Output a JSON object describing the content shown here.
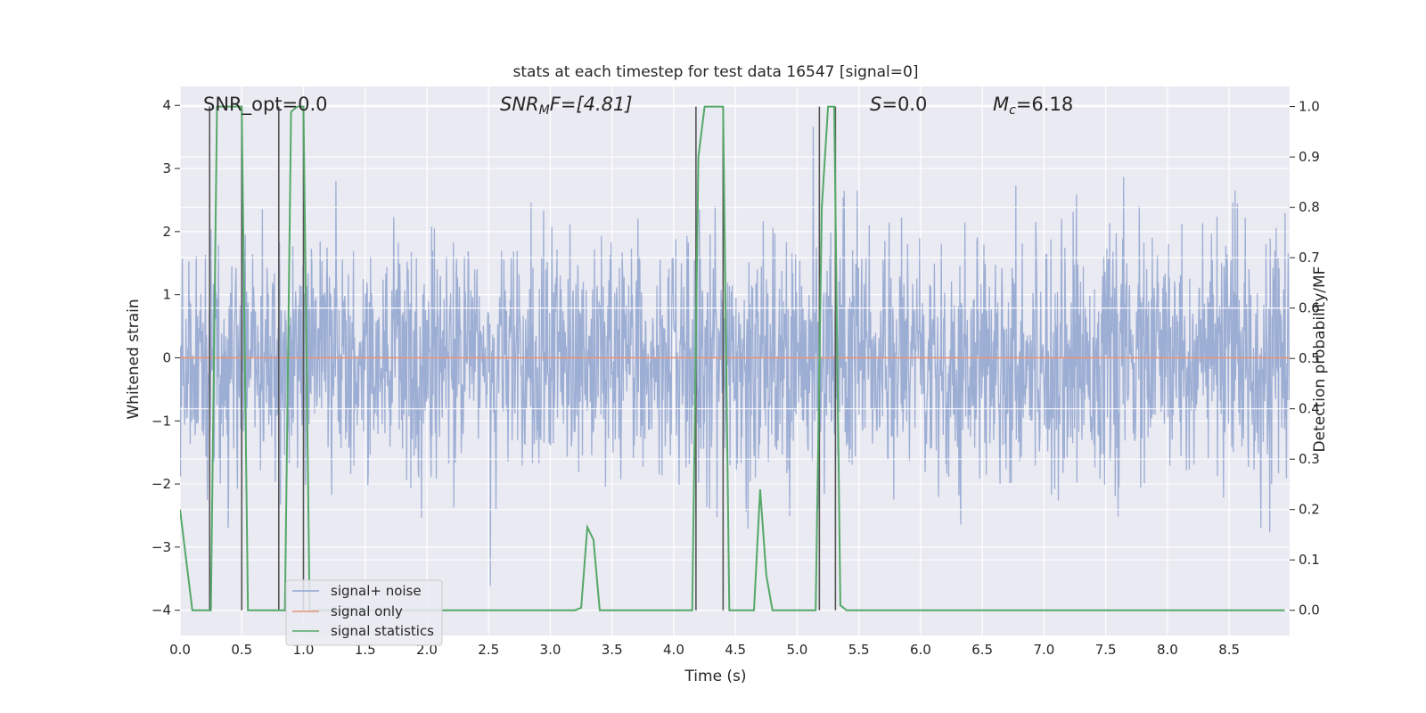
{
  "chart_data": {
    "type": "line",
    "title": "stats at each timestep for test data 16547 [signal=0]",
    "xlabel": "Time (s)",
    "ylabel_left": "Whitened strain",
    "ylabel_right": "Detection probability/MF",
    "xlim": [
      0.0,
      8.99
    ],
    "ylim_left": [
      -4.4,
      4.3
    ],
    "ylim_right": [
      -0.05,
      1.04
    ],
    "x_ticks": [
      "0.0",
      "0.5",
      "1.0",
      "1.5",
      "2.0",
      "2.5",
      "3.0",
      "3.5",
      "4.0",
      "4.5",
      "5.0",
      "5.5",
      "6.0",
      "6.5",
      "7.0",
      "7.5",
      "8.0",
      "8.5"
    ],
    "y_ticks_left": [
      "−4",
      "−3",
      "−2",
      "−1",
      "0",
      "1",
      "2",
      "3",
      "4"
    ],
    "y_ticks_right": [
      "0.0",
      "0.1",
      "0.2",
      "0.3",
      "0.4",
      "0.5",
      "0.6",
      "0.7",
      "0.8",
      "0.9",
      "1.0"
    ],
    "grid": true,
    "legend_position": "lower-left",
    "annotations": {
      "snr_opt": "SNR_opt=0.0",
      "snr_mf_base": "SNR",
      "snr_mf_sub": "M",
      "snr_mf_rest": "F=[4.81]",
      "s_base": "S",
      "s_rest": "=0.0",
      "mc_base": "M",
      "mc_sub": "c",
      "mc_rest": "=6.18"
    },
    "series": [
      {
        "name": "signal+ noise",
        "color": "#8fa3cf",
        "axis": "left",
        "description_values": "dense whitened noise, amplitude roughly within [-3.6, 3.9]"
      },
      {
        "name": "signal only",
        "color": "#e5947a",
        "axis": "left",
        "x": [
          0.0,
          8.99
        ],
        "y": [
          0.0,
          0.0
        ]
      },
      {
        "name": "signal statistics",
        "color": "#55a868",
        "axis": "right",
        "x": [
          0.0,
          0.05,
          0.1,
          0.2,
          0.25,
          0.3,
          0.5,
          0.55,
          0.6,
          0.8,
          0.85,
          0.9,
          0.95,
          1.0,
          1.05,
          1.1,
          1.15,
          3.2,
          3.25,
          3.3,
          3.35,
          3.4,
          3.45,
          4.1,
          4.15,
          4.2,
          4.25,
          4.4,
          4.45,
          4.6,
          4.65,
          4.7,
          4.75,
          4.8,
          5.1,
          5.15,
          5.2,
          5.25,
          5.3,
          5.35,
          5.4,
          8.95
        ],
        "y": [
          0.2,
          0.1,
          0.0,
          0.0,
          0.0,
          1.0,
          1.0,
          0.0,
          0.0,
          0.0,
          0.0,
          0.99,
          1.0,
          1.0,
          0.0,
          0.0,
          0.0,
          0.0,
          0.005,
          0.165,
          0.14,
          0.0,
          0.0,
          0.0,
          0.0,
          0.9,
          1.0,
          1.0,
          0.0,
          0.0,
          0.0,
          0.24,
          0.07,
          0.0,
          0.0,
          0.0,
          0.8,
          1.0,
          1.0,
          0.01,
          0.0,
          0.0
        ]
      }
    ],
    "vertical_markers_x": [
      0.24,
      0.5,
      0.8,
      1.0,
      4.18,
      4.4,
      5.18,
      5.31
    ]
  }
}
